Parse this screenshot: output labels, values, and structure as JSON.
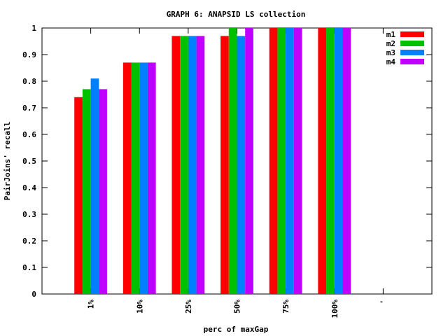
{
  "chart_data": {
    "type": "bar",
    "title": "GRAPH 6: ANAPSID LS collection",
    "xlabel": "perc of maxGap",
    "ylabel": "PairJoins' recall",
    "categories": [
      "1%",
      "10%",
      "25%",
      "50%",
      "75%",
      "100%",
      "'"
    ],
    "ylim": [
      0,
      1
    ],
    "yticks": [
      "0",
      "0.1",
      "0.2",
      "0.3",
      "0.4",
      "0.5",
      "0.6",
      "0.7",
      "0.8",
      "0.9",
      "1"
    ],
    "legend_position": "top-right",
    "series": [
      {
        "name": "m1",
        "color": "#ff0000",
        "values": [
          0.74,
          0.87,
          0.97,
          0.97,
          1.0,
          1.0,
          null
        ]
      },
      {
        "name": "m2",
        "color": "#00c000",
        "values": [
          0.77,
          0.87,
          0.97,
          1.0,
          1.0,
          1.0,
          null
        ]
      },
      {
        "name": "m3",
        "color": "#0080ff",
        "values": [
          0.81,
          0.87,
          0.97,
          0.97,
          1.0,
          1.0,
          null
        ]
      },
      {
        "name": "m4",
        "color": "#c000ff",
        "values": [
          0.77,
          0.87,
          0.97,
          1.0,
          1.0,
          1.0,
          null
        ]
      }
    ]
  }
}
